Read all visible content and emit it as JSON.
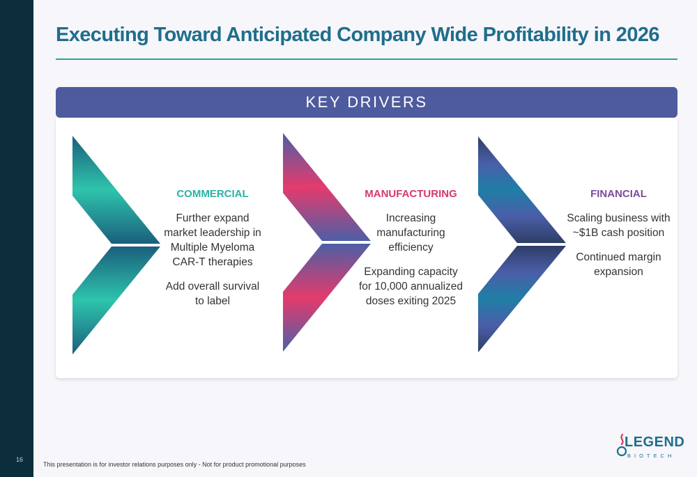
{
  "slide": {
    "page_number": "16",
    "title": "Executing Toward Anticipated Company Wide Profitability in 2026",
    "footer": "This presentation is for investor relations purposes only - Not for product promotional purposes"
  },
  "banner": {
    "label": "KEY DRIVERS"
  },
  "drivers": [
    {
      "heading": "COMMERCIAL",
      "heading_color": "#2ab3a3",
      "paragraphs": [
        "Further expand market leadership in Multiple Myeloma CAR-T therapies",
        "Add overall survival to label"
      ]
    },
    {
      "heading": "MANUFACTURING",
      "heading_color": "#d43a6a",
      "paragraphs": [
        "Increasing manufacturing efficiency",
        "Expanding capacity for 10,000 annualized doses exiting 2025"
      ]
    },
    {
      "heading": "FINANCIAL",
      "heading_color": "#7d4b9a",
      "paragraphs": [
        "Scaling business with ~$1B cash position",
        "Continued margin expansion"
      ]
    }
  ],
  "logo": {
    "word": "LEGEND",
    "sub": "BIOTECH"
  },
  "colors": {
    "sidebar": "#0c2d3c",
    "title": "#1f6e8a",
    "rule": "#2aa198",
    "banner": "#4e5b9e",
    "accent_teal": "#2ab3a3",
    "accent_pink": "#d43a6a",
    "accent_purple": "#7d4b9a"
  }
}
